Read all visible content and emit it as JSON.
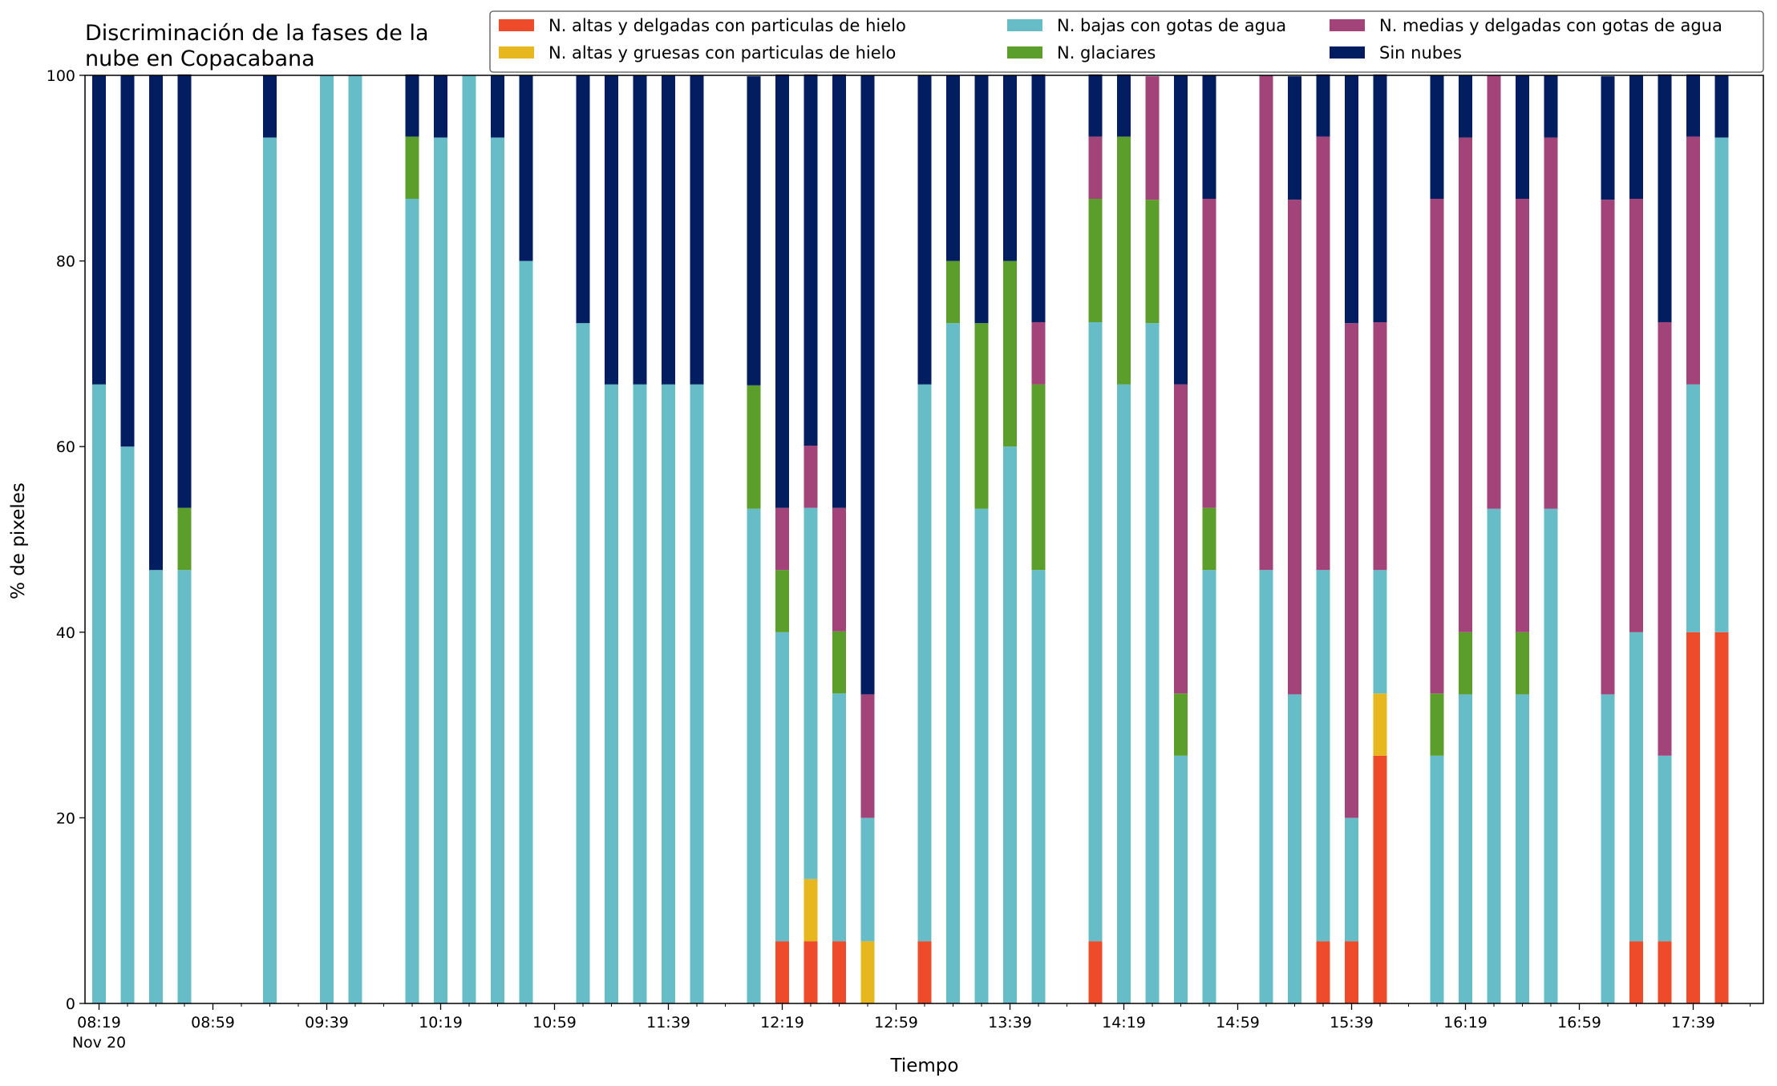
{
  "chart_data": {
    "type": "bar",
    "stacked": true,
    "title": "Discriminación de la fases de la\nnube en Copacabana",
    "xlabel": "Tiempo",
    "ylabel": "% de pixeles",
    "ylim": [
      0,
      100
    ],
    "yticks": [
      0,
      20,
      40,
      60,
      80,
      100
    ],
    "xtick_labels": [
      "08:19",
      "08:59",
      "09:39",
      "10:19",
      "10:59",
      "11:39",
      "12:19",
      "12:59",
      "13:39",
      "14:19",
      "14:59",
      "15:39",
      "16:19",
      "16:59",
      "17:39"
    ],
    "xtick_sublabel": "Nov 20",
    "x_start": "08:19",
    "x_step_minutes": 10,
    "legend_position": "top-right",
    "grid": false,
    "series": [
      {
        "name": "N. altas y delgadas con particulas de hielo",
        "color": "#ee4b2b"
      },
      {
        "name": "N. altas y gruesas con particulas de hielo",
        "color": "#e6b71e"
      },
      {
        "name": "N. bajas con gotas de agua",
        "color": "#66bdc8"
      },
      {
        "name": "N. glaciares",
        "color": "#5c9e2c"
      },
      {
        "name": "N. medias y delgadas con gotas de agua",
        "color": "#a2447a"
      },
      {
        "name": "Sin nubes",
        "color": "#031e60"
      }
    ],
    "bars": [
      {
        "time": "08:19",
        "values": [
          0,
          0,
          66.7,
          0,
          0,
          33.3
        ]
      },
      {
        "time": "08:29",
        "values": [
          0,
          0,
          60,
          0,
          0,
          40
        ]
      },
      {
        "time": "08:39",
        "values": [
          0,
          0,
          46.7,
          0,
          0,
          53.3
        ]
      },
      {
        "time": "08:49",
        "values": [
          0,
          0,
          46.7,
          6.7,
          0,
          46.7
        ]
      },
      {
        "time": "09:19",
        "values": [
          0,
          0,
          93.3,
          0,
          0,
          6.7
        ]
      },
      {
        "time": "09:39",
        "values": [
          0,
          0,
          100,
          0,
          0,
          0
        ]
      },
      {
        "time": "09:49",
        "values": [
          0,
          0,
          100,
          0,
          0,
          0
        ]
      },
      {
        "time": "10:09",
        "values": [
          0,
          0,
          86.7,
          6.7,
          0,
          6.7
        ]
      },
      {
        "time": "10:19",
        "values": [
          0,
          0,
          93.3,
          0,
          0,
          6.7
        ]
      },
      {
        "time": "10:29",
        "values": [
          0,
          0,
          100,
          0,
          0,
          0
        ]
      },
      {
        "time": "10:39",
        "values": [
          0,
          0,
          93.3,
          0,
          0,
          6.7
        ]
      },
      {
        "time": "10:49",
        "values": [
          0,
          0,
          80,
          0,
          0,
          20
        ]
      },
      {
        "time": "11:09",
        "values": [
          0,
          0,
          73.3,
          0,
          0,
          26.7
        ]
      },
      {
        "time": "11:19",
        "values": [
          0,
          0,
          66.7,
          0,
          0,
          33.3
        ]
      },
      {
        "time": "11:29",
        "values": [
          0,
          0,
          66.7,
          0,
          0,
          33.3
        ]
      },
      {
        "time": "11:39",
        "values": [
          0,
          0,
          66.7,
          0,
          0,
          33.3
        ]
      },
      {
        "time": "11:49",
        "values": [
          0,
          0,
          66.7,
          0,
          0,
          33.3
        ]
      },
      {
        "time": "12:09",
        "values": [
          0,
          0,
          53.3,
          13.3,
          0,
          33.3
        ]
      },
      {
        "time": "12:19",
        "values": [
          6.7,
          0,
          33.3,
          6.7,
          6.7,
          46.7
        ]
      },
      {
        "time": "12:29",
        "values": [
          6.7,
          6.7,
          40,
          0,
          6.7,
          40
        ]
      },
      {
        "time": "12:39",
        "values": [
          6.7,
          0,
          26.7,
          6.7,
          13.3,
          46.7
        ]
      },
      {
        "time": "12:49",
        "values": [
          0,
          6.7,
          13.3,
          0,
          13.3,
          66.7
        ]
      },
      {
        "time": "13:09",
        "values": [
          6.7,
          0,
          60,
          0,
          0,
          33.3
        ]
      },
      {
        "time": "13:19",
        "values": [
          0,
          0,
          73.3,
          6.7,
          0,
          20
        ]
      },
      {
        "time": "13:29",
        "values": [
          0,
          0,
          53.3,
          20,
          0,
          26.7
        ]
      },
      {
        "time": "13:39",
        "values": [
          0,
          0,
          60,
          20,
          0,
          20
        ]
      },
      {
        "time": "13:49",
        "values": [
          0,
          0,
          46.7,
          20,
          6.7,
          26.7
        ]
      },
      {
        "time": "14:09",
        "values": [
          6.7,
          0,
          66.7,
          13.3,
          6.7,
          6.7
        ]
      },
      {
        "time": "14:19",
        "values": [
          0,
          0,
          66.7,
          26.7,
          0,
          6.7
        ]
      },
      {
        "time": "14:29",
        "values": [
          0,
          0,
          73.3,
          13.3,
          13.3,
          0
        ]
      },
      {
        "time": "14:39",
        "values": [
          0,
          0,
          26.7,
          6.7,
          33.3,
          33.3
        ]
      },
      {
        "time": "14:49",
        "values": [
          0,
          0,
          46.7,
          6.7,
          33.3,
          13.3
        ]
      },
      {
        "time": "15:09",
        "values": [
          0,
          0,
          46.7,
          0,
          53.3,
          0
        ]
      },
      {
        "time": "15:19",
        "values": [
          0,
          0,
          33.3,
          0,
          53.3,
          13.3
        ]
      },
      {
        "time": "15:29",
        "values": [
          6.7,
          0,
          40,
          0,
          46.7,
          6.7
        ]
      },
      {
        "time": "15:39",
        "values": [
          6.7,
          0,
          13.3,
          0,
          53.3,
          26.7
        ]
      },
      {
        "time": "15:49",
        "values": [
          26.7,
          6.7,
          13.3,
          0,
          26.7,
          26.7
        ]
      },
      {
        "time": "16:09",
        "values": [
          0,
          0,
          26.7,
          6.7,
          53.3,
          13.3
        ]
      },
      {
        "time": "16:19",
        "values": [
          0,
          0,
          33.3,
          6.7,
          53.3,
          6.7
        ]
      },
      {
        "time": "16:29",
        "values": [
          0,
          0,
          53.3,
          0,
          46.7,
          0
        ]
      },
      {
        "time": "16:39",
        "values": [
          0,
          0,
          33.3,
          6.7,
          46.7,
          13.3
        ]
      },
      {
        "time": "16:49",
        "values": [
          0,
          0,
          53.3,
          0,
          40,
          6.7
        ]
      },
      {
        "time": "17:09",
        "values": [
          0,
          0,
          33.3,
          0,
          53.3,
          13.3
        ]
      },
      {
        "time": "17:19",
        "values": [
          6.7,
          0,
          33.3,
          0,
          46.7,
          13.3
        ]
      },
      {
        "time": "17:29",
        "values": [
          6.7,
          0,
          20,
          0,
          46.7,
          26.7
        ]
      },
      {
        "time": "17:39",
        "values": [
          40,
          0,
          26.7,
          0,
          26.7,
          6.7
        ]
      },
      {
        "time": "17:49",
        "values": [
          40,
          0,
          53.3,
          0,
          0,
          6.7
        ]
      }
    ]
  }
}
